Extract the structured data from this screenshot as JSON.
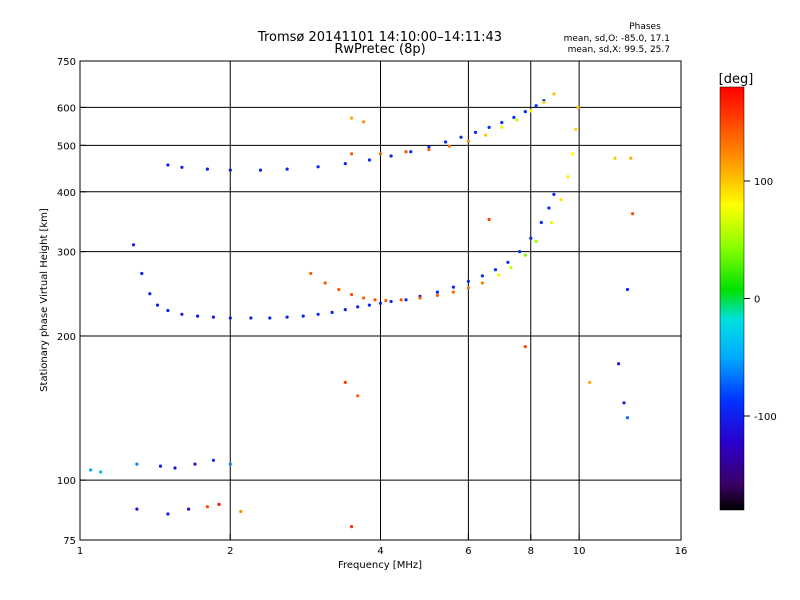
{
  "chart_data": {
    "type": "scatter",
    "title": "Tromsø 20141101 14:10:00–14:11:43",
    "subtitle": "RwPretec (8p)",
    "xlabel": "Frequency [MHz]",
    "ylabel": "Stationary phase Virtual Height [km]",
    "x_scale": "log",
    "y_scale": "log",
    "xlim": [
      1,
      16
    ],
    "ylim": [
      75,
      750
    ],
    "x_ticks": [
      "1",
      "2",
      "4",
      "6",
      "8",
      "10",
      "16"
    ],
    "x_tick_values": [
      1,
      2,
      4,
      6,
      8,
      10,
      16
    ],
    "y_ticks": [
      "75",
      "100",
      "200",
      "300",
      "400",
      "500",
      "600",
      "750"
    ],
    "y_tick_values": [
      75,
      100,
      200,
      300,
      400,
      500,
      600,
      750
    ],
    "grid": true,
    "phase_stats": {
      "heading": "Phases",
      "line_o": "mean, sd,O: -85.0, 17.1",
      "line_x": "mean, sd,X:  99.5, 25.7"
    },
    "colorbar": {
      "label": "[deg]",
      "range": [
        -180,
        180
      ],
      "ticks": [
        "100",
        "0",
        "-100"
      ],
      "tick_values": [
        100,
        0,
        -100
      ]
    },
    "series": [
      {
        "points": [
          [
            1.28,
            310,
            -100
          ],
          [
            1.33,
            270,
            -100
          ],
          [
            1.38,
            245,
            -95
          ],
          [
            1.43,
            232,
            -98
          ],
          [
            1.5,
            226,
            -100
          ],
          [
            1.6,
            222,
            -102
          ],
          [
            1.72,
            220,
            -102
          ],
          [
            1.85,
            219,
            -100
          ],
          [
            2.0,
            218,
            -100
          ],
          [
            2.2,
            218,
            -98
          ],
          [
            2.4,
            218,
            -97
          ],
          [
            2.6,
            219,
            -98
          ],
          [
            2.8,
            220,
            -97
          ],
          [
            3.0,
            222,
            -98
          ],
          [
            3.2,
            224,
            -97
          ],
          [
            3.4,
            227,
            -98
          ],
          [
            3.6,
            230,
            -96
          ],
          [
            3.8,
            232,
            -96
          ],
          [
            4.0,
            234,
            -95
          ],
          [
            4.2,
            236,
            -94
          ],
          [
            4.5,
            238,
            -96
          ],
          [
            4.8,
            242,
            -95
          ],
          [
            5.2,
            247,
            -93
          ],
          [
            5.6,
            253,
            -95
          ],
          [
            6.0,
            260,
            -94
          ],
          [
            6.4,
            267,
            -92
          ],
          [
            6.8,
            275,
            -90
          ],
          [
            7.2,
            285,
            -90
          ],
          [
            7.6,
            300,
            -90
          ],
          [
            8.0,
            320,
            -92
          ],
          [
            8.4,
            345,
            -90
          ],
          [
            8.7,
            370,
            -88
          ],
          [
            8.9,
            395,
            -90
          ]
        ]
      },
      {
        "points": [
          [
            1.5,
            455,
            -100
          ],
          [
            1.6,
            450,
            -100
          ],
          [
            1.8,
            446,
            -98
          ],
          [
            2.0,
            444,
            -98
          ],
          [
            2.3,
            444,
            -97
          ],
          [
            2.6,
            446,
            -96
          ],
          [
            3.0,
            451,
            -98
          ],
          [
            3.4,
            458,
            -95
          ],
          [
            3.8,
            466,
            -96
          ],
          [
            4.2,
            475,
            -95
          ],
          [
            4.6,
            485,
            -93
          ],
          [
            5.0,
            496,
            -95
          ],
          [
            5.4,
            508,
            -93
          ],
          [
            5.8,
            520,
            -92
          ],
          [
            6.2,
            532,
            -92
          ],
          [
            6.6,
            545,
            -90
          ],
          [
            7.0,
            558,
            -92
          ],
          [
            7.4,
            572,
            -90
          ],
          [
            7.8,
            588,
            -92
          ],
          [
            8.2,
            605,
            -90
          ],
          [
            8.5,
            620,
            -90
          ]
        ]
      },
      {
        "points": [
          [
            2.9,
            270,
            140
          ],
          [
            3.1,
            258,
            142
          ],
          [
            3.3,
            250,
            140
          ],
          [
            3.5,
            244,
            145
          ],
          [
            3.7,
            240,
            140
          ],
          [
            3.9,
            238,
            148
          ],
          [
            4.1,
            237,
            140
          ],
          [
            4.4,
            238,
            142
          ],
          [
            4.8,
            240,
            138
          ],
          [
            5.2,
            243,
            140
          ],
          [
            5.6,
            247,
            136
          ],
          [
            6.0,
            252,
            130
          ],
          [
            6.4,
            258,
            125
          ],
          [
            6.9,
            268,
            80
          ],
          [
            7.3,
            278,
            60
          ],
          [
            7.8,
            295,
            40
          ],
          [
            8.2,
            315,
            50
          ],
          [
            8.8,
            345,
            70
          ],
          [
            9.2,
            385,
            90
          ],
          [
            9.5,
            430,
            85
          ],
          [
            9.7,
            480,
            80
          ],
          [
            9.85,
            540,
            95
          ],
          [
            9.95,
            600,
            100
          ]
        ]
      },
      {
        "points": [
          [
            3.5,
            480,
            145
          ],
          [
            4.0,
            480,
            140
          ],
          [
            4.5,
            485,
            145
          ],
          [
            5.0,
            490,
            140
          ],
          [
            5.5,
            498,
            130
          ],
          [
            6.0,
            510,
            120
          ],
          [
            6.5,
            525,
            100
          ],
          [
            7.0,
            545,
            70
          ],
          [
            7.5,
            565,
            60
          ],
          [
            8.0,
            590,
            80
          ],
          [
            8.5,
            615,
            95
          ],
          [
            8.9,
            640,
            100
          ]
        ]
      },
      {
        "points": [
          [
            1.05,
            105,
            -50
          ],
          [
            1.1,
            104,
            -40
          ],
          [
            1.3,
            108,
            -60
          ],
          [
            1.45,
            107,
            -100
          ],
          [
            1.55,
            106,
            -110
          ],
          [
            1.7,
            108,
            -105
          ],
          [
            1.85,
            110,
            -95
          ],
          [
            2.0,
            108,
            -60
          ],
          [
            1.3,
            87,
            -110
          ],
          [
            1.5,
            85,
            -105
          ],
          [
            1.65,
            87,
            -110
          ],
          [
            1.8,
            88,
            150
          ],
          [
            1.9,
            89,
            170
          ],
          [
            2.1,
            86,
            120
          ],
          [
            3.5,
            80,
            160
          ],
          [
            3.4,
            160,
            155
          ],
          [
            3.6,
            150,
            140
          ],
          [
            3.5,
            570,
            110
          ],
          [
            3.7,
            560,
            120
          ],
          [
            6.6,
            350,
            155
          ],
          [
            7.8,
            190,
            150
          ],
          [
            10.5,
            160,
            110
          ],
          [
            12.0,
            175,
            -110
          ],
          [
            12.3,
            145,
            -100
          ],
          [
            12.5,
            135,
            -70
          ],
          [
            12.5,
            250,
            -90
          ],
          [
            11.8,
            470,
            100
          ],
          [
            12.8,
            360,
            150
          ],
          [
            12.7,
            470,
            110
          ]
        ]
      }
    ]
  }
}
